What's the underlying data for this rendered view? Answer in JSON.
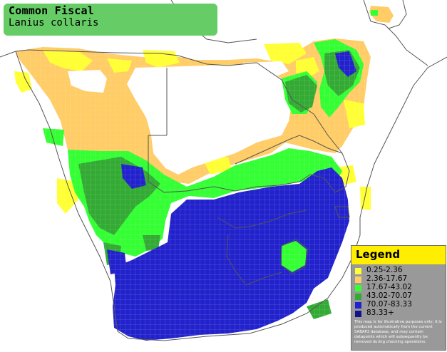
{
  "title": {
    "common_name": "Common Fiscal",
    "scientific_name": "Lanius collaris"
  },
  "legend": {
    "heading": "Legend",
    "items": [
      {
        "label": "0.25-2.36",
        "color": "#ffff33"
      },
      {
        "label": "2.36-17.67",
        "color": "#ffcc66"
      },
      {
        "label": "17.67-43.02",
        "color": "#33ff33"
      },
      {
        "label": "43.02-70.07",
        "color": "#33aa33"
      },
      {
        "label": "70.07-83.33",
        "color": "#2222cc"
      },
      {
        "label": "83.33+",
        "color": "#11118a"
      }
    ],
    "note": "This map is for illustrative purposes only; it is produced automatically from the current SABAP2 database, and may contain datapoints which will subsequently be removed during checking operations."
  },
  "map": {
    "background_color": "#ffffff",
    "border_color": "#555555"
  }
}
